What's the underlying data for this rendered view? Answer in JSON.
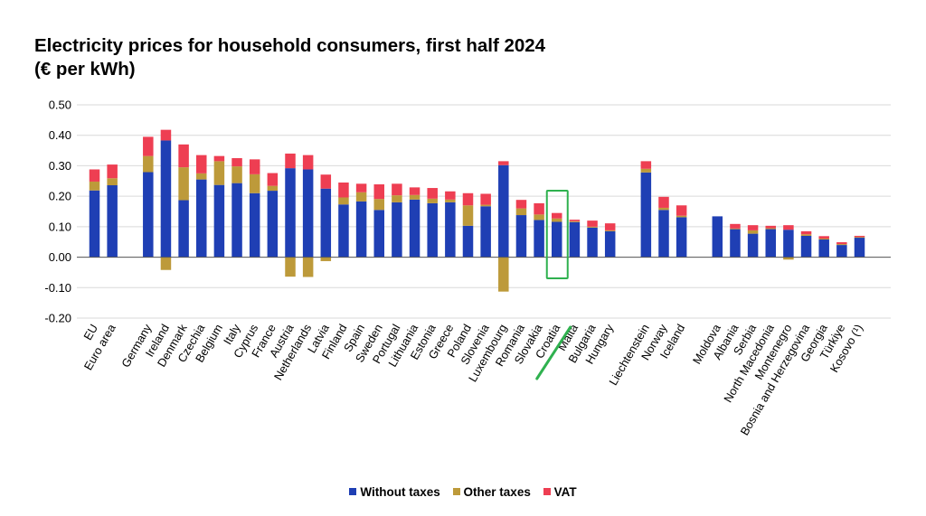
{
  "title_line1": "Electricity prices for household consumers, first half 2024",
  "title_line2": "(€ per kWh)",
  "colors": {
    "without_taxes": "#1f3fb4",
    "other_taxes": "#bd9a3a",
    "vat": "#ee3e52",
    "annotation": "#2fb14f",
    "grid": "#d9d9d9"
  },
  "legend": [
    "Without taxes",
    "Other taxes",
    "VAT"
  ],
  "annotation": {
    "target": "Croatia",
    "type": "box-and-strikethrough"
  },
  "chart_data": {
    "type": "bar",
    "stacked": true,
    "ylim": [
      -0.2,
      0.5
    ],
    "yticks": [
      "0.50",
      "0.40",
      "0.30",
      "0.20",
      "0.10",
      "0.00",
      "-0.10",
      "-0.20"
    ],
    "grid": true,
    "legend_position": "bottom",
    "groups": [
      [
        "EU",
        "Euro area"
      ],
      [
        "Germany",
        "Ireland",
        "Denmark",
        "Czechia",
        "Belgium",
        "Italy",
        "Cyprus",
        "France",
        "Austria",
        "Netherlands",
        "Latvia",
        "Finland",
        "Spain",
        "Sweden",
        "Portugal",
        "Lithuania",
        "Estonia",
        "Greece",
        "Poland",
        "Slovenia",
        "Luxembourg",
        "Romania",
        "Slovakia",
        "Croatia",
        "Malta",
        "Bulgaria",
        "Hungary"
      ],
      [
        "Liechtenstein",
        "Norway",
        "Iceland"
      ],
      [
        "Moldova",
        "Albania",
        "Serbia",
        "North Macedonia",
        "Montenegro",
        "Bosnia and Herzegovina",
        "Georgia",
        "Türkiye",
        "Kosovo (¹)"
      ]
    ],
    "categories": [
      "EU",
      "Euro area",
      "Germany",
      "Ireland",
      "Denmark",
      "Czechia",
      "Belgium",
      "Italy",
      "Cyprus",
      "France",
      "Austria",
      "Netherlands",
      "Latvia",
      "Finland",
      "Spain",
      "Sweden",
      "Portugal",
      "Lithuania",
      "Estonia",
      "Greece",
      "Poland",
      "Slovenia",
      "Luxembourg",
      "Romania",
      "Slovakia",
      "Croatia",
      "Malta",
      "Bulgaria",
      "Hungary",
      "Liechtenstein",
      "Norway",
      "Iceland",
      "Moldova",
      "Albania",
      "Serbia",
      "North Macedonia",
      "Montenegro",
      "Bosnia and Herzegovina",
      "Georgia",
      "Türkiye",
      "Kosovo (¹)"
    ],
    "series": [
      {
        "name": "Without taxes",
        "values": [
          0.219,
          0.236,
          0.279,
          0.383,
          0.187,
          0.255,
          0.237,
          0.243,
          0.21,
          0.218,
          0.292,
          0.288,
          0.225,
          0.173,
          0.183,
          0.155,
          0.18,
          0.189,
          0.177,
          0.18,
          0.103,
          0.167,
          0.302,
          0.138,
          0.122,
          0.116,
          0.115,
          0.097,
          0.085,
          0.278,
          0.155,
          0.131,
          0.134,
          0.092,
          0.077,
          0.092,
          0.09,
          0.07,
          0.058,
          0.04,
          0.064
        ]
      },
      {
        "name": "Other taxes",
        "values": [
          0.029,
          0.023,
          0.053,
          -0.042,
          0.108,
          0.02,
          0.078,
          0.055,
          0.062,
          0.016,
          -0.064,
          -0.065,
          -0.013,
          0.023,
          0.03,
          0.036,
          0.023,
          0.015,
          0.015,
          0.009,
          0.067,
          0.005,
          -0.113,
          0.022,
          0.018,
          0.011,
          0.003,
          0.003,
          0.003,
          0.012,
          0.007,
          0.005,
          0.0,
          0.002,
          0.011,
          0.003,
          -0.008,
          0.005,
          0.003,
          0.003,
          0.002
        ]
      },
      {
        "name": "VAT",
        "values": [
          0.04,
          0.045,
          0.063,
          0.035,
          0.075,
          0.06,
          0.017,
          0.027,
          0.049,
          0.042,
          0.048,
          0.047,
          0.046,
          0.049,
          0.028,
          0.048,
          0.038,
          0.025,
          0.035,
          0.027,
          0.04,
          0.036,
          0.013,
          0.028,
          0.037,
          0.018,
          0.005,
          0.02,
          0.023,
          0.025,
          0.036,
          0.034,
          0.0,
          0.015,
          0.017,
          0.008,
          0.015,
          0.01,
          0.008,
          0.006,
          0.004
        ]
      }
    ]
  }
}
